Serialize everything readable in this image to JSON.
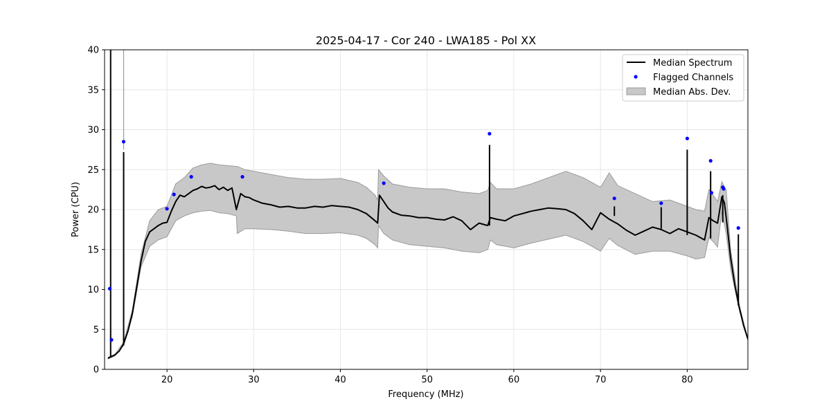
{
  "chart_data": {
    "type": "line",
    "title": "2025-04-17 - Cor 240 - LWA185 - Pol XX",
    "xlabel": "Frequency (MHz)",
    "ylabel": "Power (CPU)",
    "xlim": [
      12.8,
      87.0
    ],
    "ylim": [
      0,
      40
    ],
    "xticks": [
      20,
      30,
      40,
      50,
      60,
      70,
      80
    ],
    "yticks": [
      0,
      5,
      10,
      15,
      20,
      25,
      30,
      35,
      40
    ],
    "xtick_labels": [
      "20",
      "30",
      "40",
      "50",
      "60",
      "70",
      "80"
    ],
    "ytick_labels": [
      "0",
      "5",
      "10",
      "15",
      "20",
      "25",
      "30",
      "35",
      "40"
    ],
    "grid": true,
    "legend_position": "top-right",
    "legend": [
      "Median Spectrum",
      "Flagged Channels",
      "Median Abs. Dev."
    ],
    "colors": {
      "median_line": "#000000",
      "flagged_points": "#0000ff",
      "mad_fill": "#c8c8c8",
      "mad_edge": "#9a9a9a",
      "grid": "#e6e6e6"
    },
    "series": [
      {
        "name": "Median Spectrum",
        "kind": "line",
        "x": [
          13.2,
          13.4,
          13.6,
          14.0,
          14.5,
          15.0,
          15.5,
          16.0,
          16.5,
          17.0,
          17.5,
          18.0,
          18.5,
          19.0,
          19.5,
          20.0,
          20.5,
          21.0,
          21.5,
          22.0,
          22.5,
          23.0,
          23.5,
          24.0,
          24.5,
          25.0,
          25.5,
          26.0,
          26.5,
          27.0,
          27.5,
          28.0,
          28.2,
          28.5,
          29.0,
          29.5,
          30.0,
          31.0,
          32.0,
          33.0,
          34.0,
          35.0,
          36.0,
          37.0,
          38.0,
          39.0,
          40.0,
          41.0,
          42.0,
          43.0,
          44.0,
          44.3,
          44.5,
          45.0,
          45.5,
          46.0,
          47.0,
          48.0,
          49.0,
          50.0,
          51.0,
          52.0,
          53.0,
          54.0,
          55.0,
          56.0,
          57.0,
          57.3,
          58.0,
          59.0,
          60.0,
          61.0,
          62.0,
          63.0,
          64.0,
          65.0,
          66.0,
          67.0,
          68.0,
          69.0,
          70.0,
          71.0,
          72.0,
          73.0,
          74.0,
          75.0,
          76.0,
          77.0,
          78.0,
          79.0,
          80.0,
          81.0,
          82.0,
          82.5,
          83.0,
          83.5,
          84.0,
          84.3,
          84.6,
          85.0,
          85.5,
          86.0,
          86.5,
          87.0
        ],
        "y": [
          1.4,
          1.5,
          1.6,
          1.8,
          2.3,
          3.2,
          4.8,
          7.0,
          10.2,
          13.5,
          16.0,
          17.2,
          17.6,
          18.0,
          18.3,
          18.4,
          19.8,
          21.0,
          21.8,
          21.6,
          22.0,
          22.4,
          22.6,
          22.9,
          22.7,
          22.8,
          23.0,
          22.5,
          22.8,
          22.4,
          22.7,
          20.0,
          20.8,
          22.0,
          21.6,
          21.5,
          21.2,
          20.8,
          20.6,
          20.3,
          20.4,
          20.2,
          20.2,
          20.4,
          20.3,
          20.5,
          20.4,
          20.3,
          20.0,
          19.5,
          18.6,
          18.3,
          21.8,
          21.0,
          20.2,
          19.7,
          19.3,
          19.2,
          19.0,
          19.0,
          18.8,
          18.7,
          19.1,
          18.6,
          17.5,
          18.3,
          18.0,
          19.0,
          18.8,
          18.6,
          19.2,
          19.5,
          19.8,
          20.0,
          20.2,
          20.1,
          20.0,
          19.5,
          18.6,
          17.5,
          19.6,
          18.8,
          18.2,
          17.4,
          16.8,
          17.3,
          17.8,
          17.5,
          17.0,
          17.6,
          17.2,
          16.8,
          16.2,
          19.0,
          18.6,
          18.3,
          21.6,
          20.8,
          18.0,
          14.0,
          10.5,
          7.8,
          5.5,
          3.8
        ]
      },
      {
        "name": "Flagged Channels",
        "kind": "scatter",
        "x": [
          13.4,
          13.6,
          15.0,
          20.0,
          20.8,
          22.8,
          28.7,
          45.0,
          57.2,
          71.6,
          77.0,
          80.0,
          82.7,
          82.8,
          84.1,
          84.2,
          85.9
        ],
        "y": [
          10.1,
          3.7,
          28.5,
          20.1,
          21.9,
          24.1,
          24.1,
          23.3,
          29.5,
          21.4,
          20.8,
          28.9,
          26.1,
          22.1,
          22.8,
          22.6,
          17.7
        ]
      },
      {
        "name": "Median Abs. Dev.",
        "kind": "band",
        "x": [
          13.2,
          14.0,
          15.0,
          16.0,
          17.0,
          18.0,
          19.0,
          20.0,
          21.0,
          22.0,
          23.0,
          24.0,
          25.0,
          26.0,
          27.0,
          28.0,
          28.1,
          29.0,
          30.0,
          32.0,
          34.0,
          36.0,
          38.0,
          40.0,
          42.0,
          43.0,
          44.0,
          44.3,
          44.4,
          45.0,
          46.0,
          48.0,
          50.0,
          52.0,
          54.0,
          56.0,
          57.0,
          57.3,
          58.0,
          60.0,
          62.0,
          64.0,
          66.0,
          68.0,
          70.0,
          71.0,
          72.0,
          74.0,
          76.0,
          78.0,
          80.0,
          81.0,
          82.0,
          82.5,
          83.0,
          83.5,
          84.0,
          84.5,
          85.0,
          86.0,
          87.0
        ],
        "lower": [
          1.3,
          1.7,
          3.0,
          6.6,
          12.8,
          15.4,
          16.2,
          16.6,
          18.6,
          19.2,
          19.6,
          19.8,
          19.9,
          19.6,
          19.5,
          19.2,
          17.0,
          17.6,
          17.6,
          17.5,
          17.3,
          17.0,
          17.0,
          17.1,
          16.8,
          16.4,
          15.6,
          15.2,
          18.0,
          17.0,
          16.2,
          15.6,
          15.4,
          15.2,
          14.8,
          14.6,
          15.0,
          16.2,
          15.6,
          15.2,
          15.8,
          16.3,
          16.8,
          16.0,
          14.8,
          16.4,
          15.5,
          14.4,
          14.8,
          14.8,
          14.2,
          13.8,
          14.0,
          16.5,
          16.0,
          15.3,
          19.8,
          17.0,
          12.6,
          7.4,
          3.6
        ],
        "upper": [
          1.5,
          1.9,
          3.4,
          7.4,
          14.4,
          18.6,
          20.0,
          20.4,
          23.2,
          24.0,
          25.2,
          25.6,
          25.8,
          25.6,
          25.5,
          25.4,
          25.4,
          25.0,
          24.8,
          24.4,
          24.0,
          23.8,
          23.8,
          23.9,
          23.4,
          22.8,
          21.8,
          21.2,
          25.0,
          24.2,
          23.2,
          22.8,
          22.6,
          22.6,
          22.2,
          22.0,
          22.4,
          23.4,
          22.6,
          22.6,
          23.2,
          24.0,
          24.8,
          24.0,
          22.8,
          24.6,
          23.0,
          22.0,
          21.0,
          21.2,
          20.4,
          20.0,
          19.8,
          22.5,
          21.8,
          21.0,
          23.5,
          22.4,
          15.0,
          8.0,
          3.9
        ]
      }
    ],
    "spikes": {
      "description_free": true,
      "x": [
        13.5,
        15.0,
        57.2,
        71.6,
        77.0,
        80.0,
        82.7,
        84.1,
        85.9
      ],
      "top": [
        40.0,
        27.2,
        28.1,
        20.4,
        20.3,
        27.5,
        24.8,
        21.8,
        16.9
      ],
      "bottom": [
        1.5,
        3.0,
        18.0,
        19.2,
        17.6,
        16.8,
        16.4,
        18.4,
        8.0
      ]
    }
  }
}
